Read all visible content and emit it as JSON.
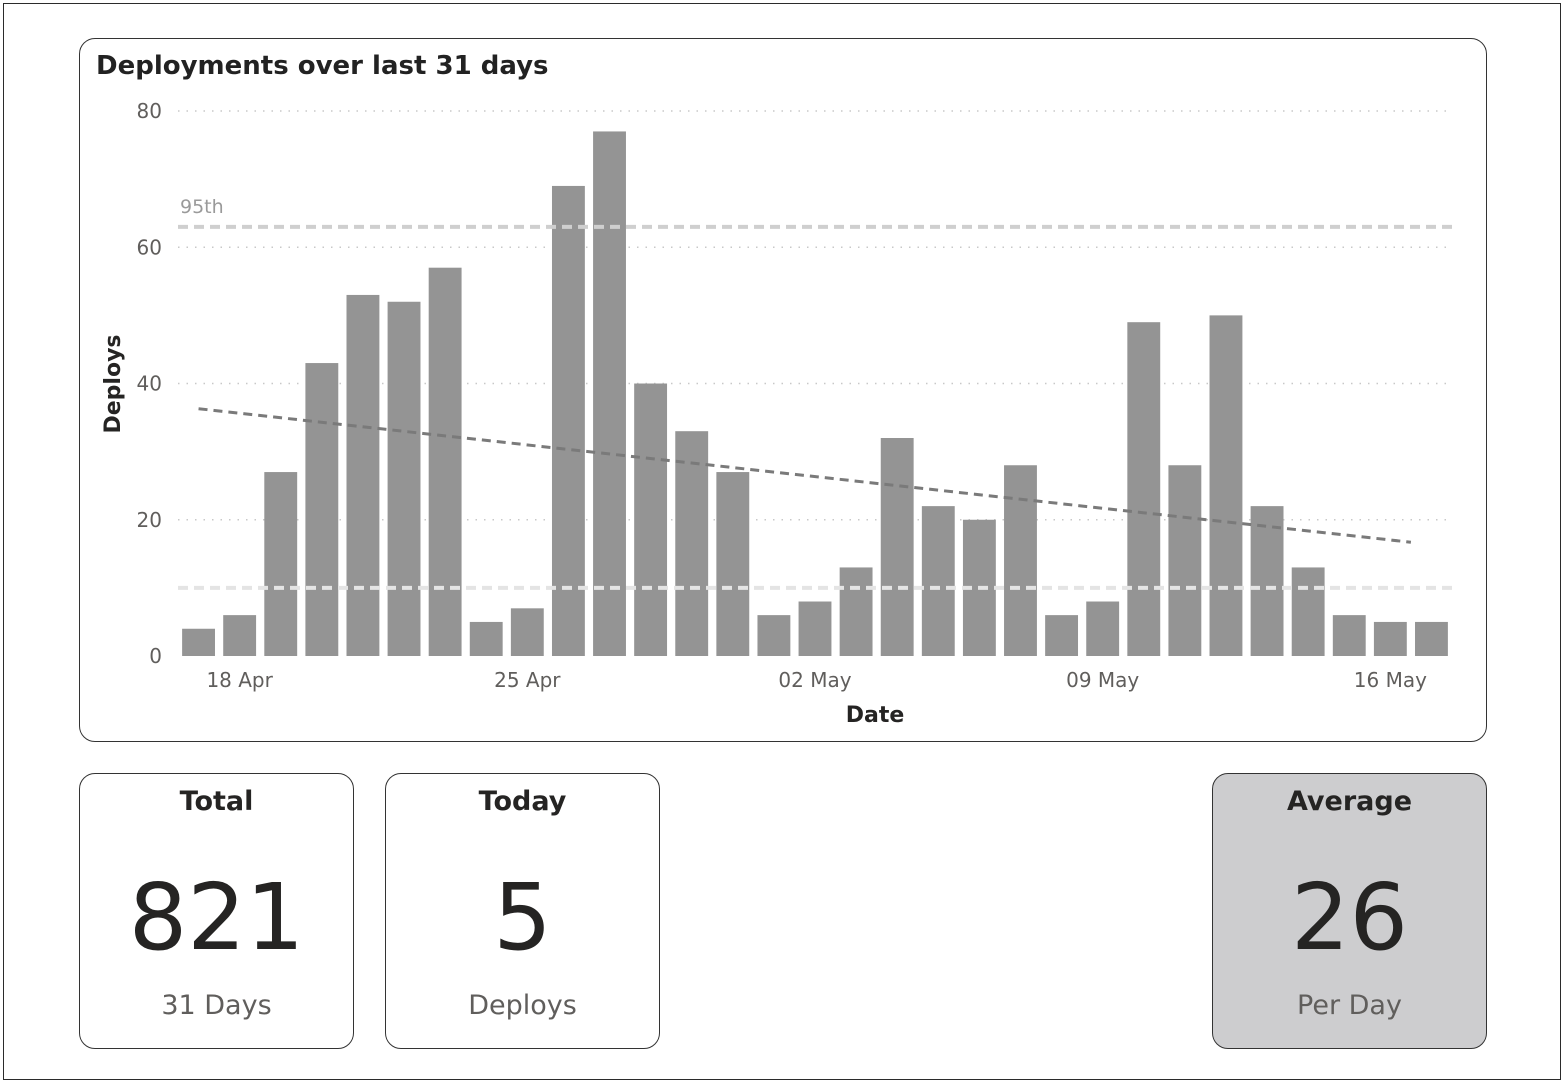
{
  "chart_data": {
    "type": "bar",
    "title": "Deployments over last 31 days",
    "xlabel": "Date",
    "ylabel": "Deploys",
    "ylim": [
      0,
      80
    ],
    "yticks": [
      0,
      20,
      40,
      60,
      80
    ],
    "dates": [
      "17 Apr",
      "18 Apr",
      "19 Apr",
      "20 Apr",
      "21 Apr",
      "22 Apr",
      "23 Apr",
      "24 Apr",
      "25 Apr",
      "26 Apr",
      "27 Apr",
      "28 Apr",
      "29 Apr",
      "30 Apr",
      "01 May",
      "02 May",
      "03 May",
      "04 May",
      "05 May",
      "06 May",
      "07 May",
      "08 May",
      "09 May",
      "10 May",
      "11 May",
      "12 May",
      "13 May",
      "14 May",
      "15 May",
      "16 May",
      "17 May"
    ],
    "values": [
      4,
      6,
      27,
      43,
      53,
      52,
      57,
      5,
      7,
      69,
      77,
      40,
      33,
      27,
      6,
      8,
      13,
      32,
      22,
      20,
      28,
      6,
      8,
      49,
      28,
      50,
      22,
      13,
      6,
      5,
      5
    ],
    "xtick_labels": [
      "18 Apr",
      "25 Apr",
      "02 May",
      "09 May",
      "16 May"
    ],
    "grid": "horizontal dotted",
    "reference_lines": [
      {
        "label": "95th",
        "value": 63
      },
      {
        "label": "",
        "value": 10
      }
    ],
    "trendline": {
      "start": 36.3,
      "end": 16.7
    },
    "colors": {
      "bar": "#949494",
      "trend": "#7a7a7a",
      "ref95": "#cfcfcf",
      "ref_low": "#e4e4e4",
      "grid": "#c8c8c8"
    }
  },
  "cards": {
    "total": {
      "title": "Total",
      "value": "821",
      "sub": "31 Days"
    },
    "today": {
      "title": "Today",
      "value": "5",
      "sub": "Deploys"
    },
    "average": {
      "title": "Average",
      "value": "26",
      "sub": "Per Day"
    }
  }
}
